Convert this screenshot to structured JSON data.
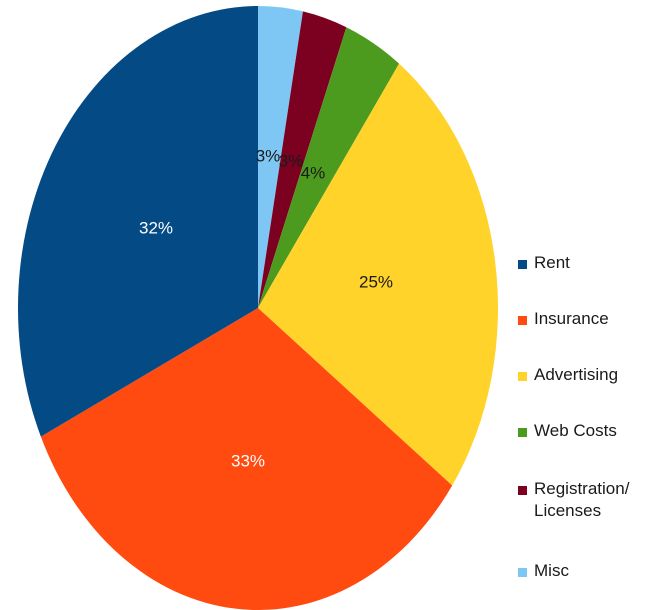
{
  "chart_data": {
    "type": "pie",
    "title": "",
    "start_angle_deg": 0,
    "direction": "clockwise",
    "slices": [
      {
        "label": "Misc",
        "value": 3,
        "display": "3%",
        "color": "#7ec7f5"
      },
      {
        "label": "Registration/ Licenses",
        "value": 3,
        "display": "3%",
        "color": "#7c0020"
      },
      {
        "label": "Web Costs",
        "value": 4,
        "display": "4%",
        "color": "#4c9b1f"
      },
      {
        "label": "Advertising",
        "value": 25,
        "display": "25%",
        "color": "#ffd32a"
      },
      {
        "label": "Insurance",
        "value": 33,
        "display": "33%",
        "color": "#ff4a10"
      },
      {
        "label": "Rent",
        "value": 32,
        "display": "32%",
        "color": "#044a84"
      }
    ],
    "legend": {
      "placement": "right",
      "entries": [
        {
          "label": "Rent",
          "color": "#044a84"
        },
        {
          "label": "Insurance",
          "color": "#ff4a10"
        },
        {
          "label": "Advertising",
          "color": "#ffd32a"
        },
        {
          "label": "Web Costs",
          "color": "#4c9b1f"
        },
        {
          "label": "Registration/ Licenses",
          "color": "#7c0020"
        },
        {
          "label": "Misc",
          "color": "#7ec7f5"
        }
      ]
    },
    "label_colors": {
      "light_text": "#ffffff",
      "dark_text": "#1a1a1a"
    }
  }
}
